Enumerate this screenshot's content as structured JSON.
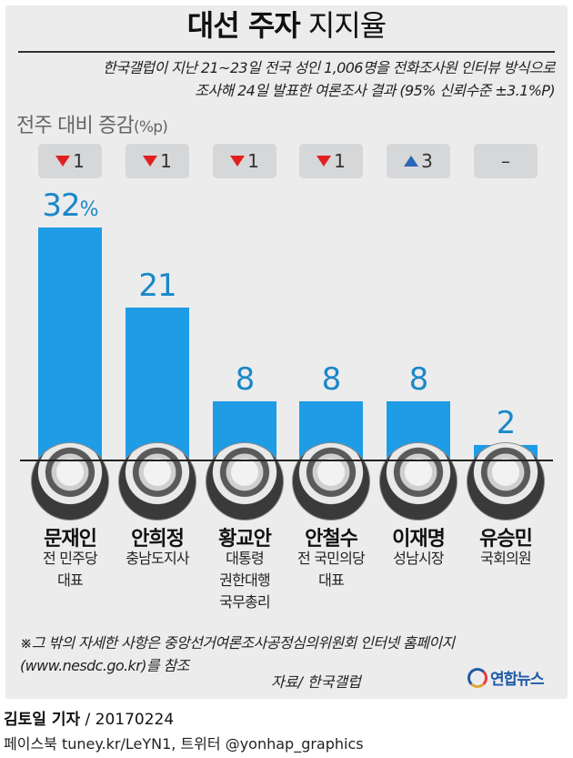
{
  "header": {
    "title_bold": "대선 주자",
    "title_light": "지지율",
    "subtitle_line1": "한국갤럽이 지난 21~23일 전국 성인 1,006명을 전화조사원 인터뷰 방식으로",
    "subtitle_line2": "조사해 24일 발표한 여론조사 결과 (95% 신뢰수준 ±3.1%P)"
  },
  "delta_header": {
    "label": "전주 대비 증감",
    "unit": "(%p)"
  },
  "chart_data": {
    "type": "bar",
    "unit_label": "%",
    "categories": [
      "문재인",
      "안희정",
      "황교안",
      "안철수",
      "이재명",
      "유승민"
    ],
    "values": [
      32,
      21,
      8,
      8,
      8,
      2
    ],
    "ylim": [
      0,
      32
    ],
    "value_labels": [
      "32",
      "21",
      "8",
      "8",
      "8",
      "2"
    ],
    "changes": [
      {
        "direction": "down",
        "text": "1"
      },
      {
        "direction": "down",
        "text": "1"
      },
      {
        "direction": "down",
        "text": "1"
      },
      {
        "direction": "down",
        "text": "1"
      },
      {
        "direction": "up",
        "text": "3"
      },
      {
        "direction": "none",
        "text": "–"
      }
    ],
    "roles": [
      "전 민주당\n대표",
      "충남도지사",
      "대통령\n권한대행\n국무총리",
      "전 국민의당\n대표",
      "성남시장",
      "국회의원"
    ],
    "colors": {
      "bar": "#1f9ce6",
      "label": "#1a88c9",
      "down": "#e02020",
      "up": "#2a66b8"
    }
  },
  "footer": {
    "note_line1": "※그 밖의 자세한 사항은 중앙선거여론조사공정심의위원회 인터넷 홈페이지",
    "note_line2": "(www.nesdc.go.kr)를 참조",
    "source": "자료/ 한국갤럽",
    "logo_text": "연합뉴스",
    "reporter": "김토일 기자",
    "date": " / 20170224",
    "credits": "페이스북 tuney.kr/LeYN1, 트위터 @yonhap_graphics"
  }
}
